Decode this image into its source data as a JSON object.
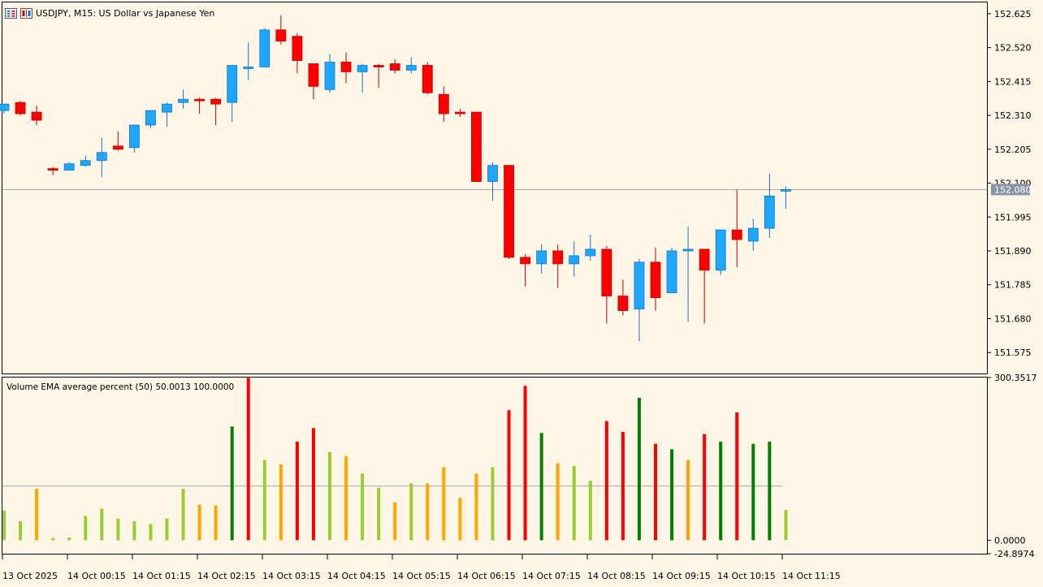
{
  "window": {
    "symbol_title": "USDJPY, M15:  US Dollar vs Japanese Yen"
  },
  "indicator": {
    "label": "Volume EMA average percent (50) 50.0013 100.0000"
  },
  "colors": {
    "background": "#fdf5e6",
    "bull": "#1ea7ff",
    "bull_border": "#1873c7",
    "bear": "#ff0000",
    "bear_border": "#c00000",
    "vol_lime": "#9acd32",
    "vol_orange": "#ffa500",
    "vol_red": "#ff0000",
    "vol_green": "#008000",
    "axis": "#000000",
    "ref_line": "#a9a9a9",
    "price_tag_bg": "#8a94a4"
  },
  "chart_data": [
    {
      "type": "candlestick",
      "title": "USDJPY, M15:  US Dollar vs Japanese Yen",
      "ylim": [
        151.51,
        152.66
      ],
      "y_ticks": [
        "152.625",
        "152.520",
        "152.415",
        "152.310",
        "152.205",
        "152.100",
        "151.995",
        "151.890",
        "151.785",
        "151.680",
        "151.575"
      ],
      "current_price": "152.080",
      "x_ticks": [
        "13 Oct 2025",
        "14 Oct 00:15",
        "14 Oct 01:15",
        "14 Oct 02:15",
        "14 Oct 03:15",
        "14 Oct 04:15",
        "14 Oct 05:15",
        "14 Oct 06:15",
        "14 Oct 07:15",
        "14 Oct 08:15",
        "14 Oct 09:15",
        "14 Oct 10:15",
        "14 Oct 11:15"
      ],
      "candles": [
        {
          "o": 152.325,
          "h": 152.345,
          "l": 152.315,
          "c": 152.345
        },
        {
          "o": 152.35,
          "h": 152.355,
          "l": 152.31,
          "c": 152.315
        },
        {
          "o": 152.32,
          "h": 152.34,
          "l": 152.28,
          "c": 152.295
        },
        {
          "o": 152.145,
          "h": 152.15,
          "l": 152.125,
          "c": 152.14
        },
        {
          "o": 152.14,
          "h": 152.165,
          "l": 152.14,
          "c": 152.16
        },
        {
          "o": 152.155,
          "h": 152.185,
          "l": 152.15,
          "c": 152.17
        },
        {
          "o": 152.17,
          "h": 152.24,
          "l": 152.12,
          "c": 152.195
        },
        {
          "o": 152.215,
          "h": 152.26,
          "l": 152.2,
          "c": 152.205
        },
        {
          "o": 152.21,
          "h": 152.28,
          "l": 152.195,
          "c": 152.28
        },
        {
          "o": 152.28,
          "h": 152.325,
          "l": 152.27,
          "c": 152.325
        },
        {
          "o": 152.32,
          "h": 152.35,
          "l": 152.275,
          "c": 152.345
        },
        {
          "o": 152.35,
          "h": 152.39,
          "l": 152.33,
          "c": 152.36
        },
        {
          "o": 152.36,
          "h": 152.365,
          "l": 152.315,
          "c": 152.355
        },
        {
          "o": 152.36,
          "h": 152.365,
          "l": 152.28,
          "c": 152.345
        },
        {
          "o": 152.35,
          "h": 152.465,
          "l": 152.29,
          "c": 152.465
        },
        {
          "o": 152.46,
          "h": 152.535,
          "l": 152.42,
          "c": 152.46
        },
        {
          "o": 152.46,
          "h": 152.58,
          "l": 152.46,
          "c": 152.575
        },
        {
          "o": 152.575,
          "h": 152.62,
          "l": 152.53,
          "c": 152.54
        },
        {
          "o": 152.555,
          "h": 152.565,
          "l": 152.44,
          "c": 152.48
        },
        {
          "o": 152.47,
          "h": 152.47,
          "l": 152.36,
          "c": 152.4
        },
        {
          "o": 152.39,
          "h": 152.5,
          "l": 152.38,
          "c": 152.475
        },
        {
          "o": 152.475,
          "h": 152.505,
          "l": 152.41,
          "c": 152.445
        },
        {
          "o": 152.445,
          "h": 152.47,
          "l": 152.38,
          "c": 152.465
        },
        {
          "o": 152.465,
          "h": 152.47,
          "l": 152.395,
          "c": 152.46
        },
        {
          "o": 152.47,
          "h": 152.485,
          "l": 152.44,
          "c": 152.45
        },
        {
          "o": 152.45,
          "h": 152.49,
          "l": 152.44,
          "c": 152.465
        },
        {
          "o": 152.465,
          "h": 152.475,
          "l": 152.375,
          "c": 152.38
        },
        {
          "o": 152.375,
          "h": 152.4,
          "l": 152.29,
          "c": 152.315
        },
        {
          "o": 152.32,
          "h": 152.33,
          "l": 152.305,
          "c": 152.315
        },
        {
          "o": 152.32,
          "h": 152.32,
          "l": 152.105,
          "c": 152.105
        },
        {
          "o": 152.105,
          "h": 152.165,
          "l": 152.045,
          "c": 152.155
        },
        {
          "o": 152.155,
          "h": 152.155,
          "l": 151.865,
          "c": 151.87
        },
        {
          "o": 151.87,
          "h": 151.88,
          "l": 151.78,
          "c": 151.85
        },
        {
          "o": 151.85,
          "h": 151.91,
          "l": 151.82,
          "c": 151.89
        },
        {
          "o": 151.89,
          "h": 151.91,
          "l": 151.775,
          "c": 151.85
        },
        {
          "o": 151.85,
          "h": 151.92,
          "l": 151.81,
          "c": 151.875
        },
        {
          "o": 151.875,
          "h": 151.94,
          "l": 151.86,
          "c": 151.895
        },
        {
          "o": 151.895,
          "h": 151.905,
          "l": 151.665,
          "c": 151.75
        },
        {
          "o": 151.75,
          "h": 151.8,
          "l": 151.69,
          "c": 151.705
        },
        {
          "o": 151.71,
          "h": 151.865,
          "l": 151.61,
          "c": 151.855
        },
        {
          "o": 151.855,
          "h": 151.9,
          "l": 151.705,
          "c": 151.745
        },
        {
          "o": 151.76,
          "h": 151.9,
          "l": 151.76,
          "c": 151.89
        },
        {
          "o": 151.89,
          "h": 151.965,
          "l": 151.67,
          "c": 151.895
        },
        {
          "o": 151.895,
          "h": 151.895,
          "l": 151.665,
          "c": 151.83
        },
        {
          "o": 151.83,
          "h": 151.955,
          "l": 151.815,
          "c": 151.955
        },
        {
          "o": 151.955,
          "h": 152.08,
          "l": 151.84,
          "c": 151.925
        },
        {
          "o": 151.92,
          "h": 151.99,
          "l": 151.89,
          "c": 151.96
        },
        {
          "o": 151.96,
          "h": 152.13,
          "l": 151.93,
          "c": 152.06
        },
        {
          "o": 152.075,
          "h": 152.09,
          "l": 152.02,
          "c": 152.08
        }
      ]
    },
    {
      "type": "bar",
      "title": "Volume EMA average percent (50) 50.0013 100.0000",
      "ylim": [
        -24.8974,
        300.3517
      ],
      "y_ticks": [
        "300.3517",
        "0.0000",
        "-24.8974"
      ],
      "reference_value": 100.0,
      "bars": [
        {
          "v": 55,
          "c": "lime"
        },
        {
          "v": 35,
          "c": "lime"
        },
        {
          "v": 95,
          "c": "orange"
        },
        {
          "v": 4,
          "c": "orange"
        },
        {
          "v": 5,
          "c": "lime"
        },
        {
          "v": 45,
          "c": "lime"
        },
        {
          "v": 58,
          "c": "lime"
        },
        {
          "v": 40,
          "c": "lime"
        },
        {
          "v": 35,
          "c": "lime"
        },
        {
          "v": 30,
          "c": "lime"
        },
        {
          "v": 40,
          "c": "lime"
        },
        {
          "v": 95,
          "c": "lime"
        },
        {
          "v": 66,
          "c": "orange"
        },
        {
          "v": 64,
          "c": "orange"
        },
        {
          "v": 210,
          "c": "green"
        },
        {
          "v": 300,
          "c": "red"
        },
        {
          "v": 148,
          "c": "lime"
        },
        {
          "v": 140,
          "c": "orange"
        },
        {
          "v": 182,
          "c": "red"
        },
        {
          "v": 207,
          "c": "red"
        },
        {
          "v": 163,
          "c": "lime"
        },
        {
          "v": 155,
          "c": "orange"
        },
        {
          "v": 123,
          "c": "lime"
        },
        {
          "v": 97,
          "c": "lime"
        },
        {
          "v": 70,
          "c": "orange"
        },
        {
          "v": 105,
          "c": "lime"
        },
        {
          "v": 105,
          "c": "orange"
        },
        {
          "v": 135,
          "c": "orange"
        },
        {
          "v": 78,
          "c": "orange"
        },
        {
          "v": 123,
          "c": "orange"
        },
        {
          "v": 135,
          "c": "lime"
        },
        {
          "v": 240,
          "c": "red"
        },
        {
          "v": 285,
          "c": "red"
        },
        {
          "v": 198,
          "c": "green"
        },
        {
          "v": 142,
          "c": "orange"
        },
        {
          "v": 137,
          "c": "lime"
        },
        {
          "v": 110,
          "c": "lime"
        },
        {
          "v": 220,
          "c": "red"
        },
        {
          "v": 200,
          "c": "red"
        },
        {
          "v": 263,
          "c": "green"
        },
        {
          "v": 178,
          "c": "red"
        },
        {
          "v": 168,
          "c": "green"
        },
        {
          "v": 148,
          "c": "orange"
        },
        {
          "v": 196,
          "c": "red"
        },
        {
          "v": 182,
          "c": "green"
        },
        {
          "v": 236,
          "c": "red"
        },
        {
          "v": 178,
          "c": "green"
        },
        {
          "v": 182,
          "c": "green"
        },
        {
          "v": 56,
          "c": "lime"
        }
      ]
    }
  ]
}
